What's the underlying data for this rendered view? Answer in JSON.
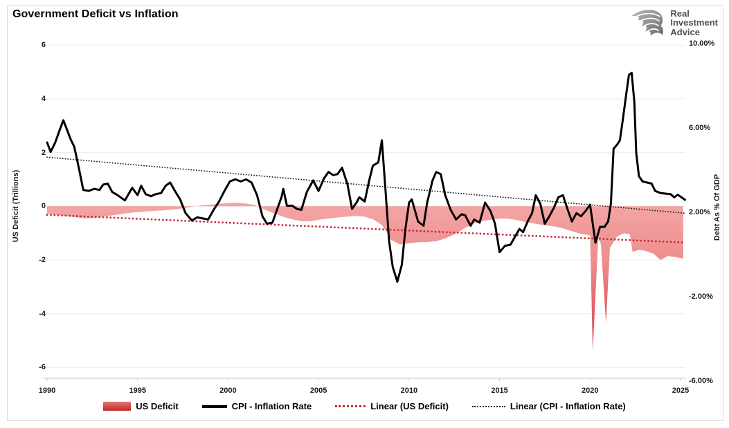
{
  "title": "Government Deficit vs Inflation",
  "logo": {
    "lines": [
      "Real",
      "Investment",
      "Advice"
    ]
  },
  "colors": {
    "area_top": "#f3a6a6",
    "area_mid": "#ee8d8d",
    "area_bottom": "#cc2b33",
    "cpi_line": "#000000",
    "deficit_trend": "#c9293a",
    "cpi_trend": "#1a1a1a",
    "gridline": "#ececec",
    "axis_line": "#c8c8c8"
  },
  "chart_data": {
    "type": "line",
    "title": "Government Deficit vs Inflation",
    "grid": "horizontal",
    "x_axis": {
      "range": [
        1990,
        2025.4
      ],
      "ticks": [
        "1990",
        "1995",
        "2000",
        "2005",
        "2010",
        "2015",
        "2020",
        "2025"
      ],
      "tick_values": [
        1990,
        1995,
        2000,
        2005,
        2010,
        2015,
        2020,
        2025
      ]
    },
    "left_axis": {
      "label": "US Deficit (Trillions)",
      "range": [
        -6,
        6
      ],
      "ticks": [
        "6",
        "4",
        "2",
        "0",
        "-2",
        "-4",
        "-6"
      ],
      "tick_values": [
        6,
        4,
        2,
        0,
        -2,
        -4,
        -6
      ]
    },
    "right_axis": {
      "label": "Debt As % Of GDP",
      "range": [
        -7.9,
        10.1
      ],
      "ticks": [
        "10.00%",
        "6.00%",
        "2.00%",
        "-2.00%",
        "-6.00%"
      ],
      "tick_values": [
        10,
        6,
        2,
        -2,
        -6
      ]
    },
    "legend": {
      "position": "bottom"
    },
    "series": [
      {
        "name": "US Deficit",
        "type": "area",
        "axis": "left",
        "points": [
          [
            1990.0,
            -0.28
          ],
          [
            1990.5,
            -0.32
          ],
          [
            1991.0,
            -0.36
          ],
          [
            1991.5,
            -0.4
          ],
          [
            1992.0,
            -0.45
          ],
          [
            1992.5,
            -0.44
          ],
          [
            1993.0,
            -0.4
          ],
          [
            1993.5,
            -0.35
          ],
          [
            1994.0,
            -0.3
          ],
          [
            1994.5,
            -0.25
          ],
          [
            1995.0,
            -0.22
          ],
          [
            1995.5,
            -0.19
          ],
          [
            1996.0,
            -0.17
          ],
          [
            1996.5,
            -0.15
          ],
          [
            1997.0,
            -0.12
          ],
          [
            1997.5,
            -0.08
          ],
          [
            1998.0,
            -0.02
          ],
          [
            1998.5,
            0.03
          ],
          [
            1999.0,
            0.06
          ],
          [
            1999.5,
            0.09
          ],
          [
            2000.0,
            0.12
          ],
          [
            2000.5,
            0.13
          ],
          [
            2001.0,
            0.1
          ],
          [
            2001.5,
            0.04
          ],
          [
            2002.0,
            -0.12
          ],
          [
            2002.5,
            -0.25
          ],
          [
            2003.0,
            -0.38
          ],
          [
            2003.5,
            -0.48
          ],
          [
            2004.0,
            -0.55
          ],
          [
            2004.5,
            -0.56
          ],
          [
            2005.0,
            -0.5
          ],
          [
            2005.5,
            -0.46
          ],
          [
            2006.0,
            -0.42
          ],
          [
            2006.5,
            -0.39
          ],
          [
            2007.0,
            -0.36
          ],
          [
            2007.5,
            -0.38
          ],
          [
            2008.0,
            -0.48
          ],
          [
            2008.5,
            -0.7
          ],
          [
            2008.75,
            -0.95
          ],
          [
            2009.0,
            -1.25
          ],
          [
            2009.5,
            -1.42
          ],
          [
            2010.0,
            -1.38
          ],
          [
            2010.5,
            -1.34
          ],
          [
            2011.0,
            -1.33
          ],
          [
            2011.5,
            -1.3
          ],
          [
            2012.0,
            -1.2
          ],
          [
            2012.5,
            -1.05
          ],
          [
            2013.0,
            -0.85
          ],
          [
            2013.5,
            -0.66
          ],
          [
            2014.0,
            -0.56
          ],
          [
            2014.5,
            -0.5
          ],
          [
            2015.0,
            -0.46
          ],
          [
            2015.5,
            -0.46
          ],
          [
            2016.0,
            -0.52
          ],
          [
            2016.5,
            -0.6
          ],
          [
            2017.0,
            -0.65
          ],
          [
            2017.5,
            -0.71
          ],
          [
            2018.0,
            -0.75
          ],
          [
            2018.5,
            -0.82
          ],
          [
            2019.0,
            -0.93
          ],
          [
            2019.5,
            -1.03
          ],
          [
            2020.0,
            -1.08
          ],
          [
            2020.15,
            -5.4
          ],
          [
            2020.45,
            -1.2
          ],
          [
            2020.6,
            -1.4
          ],
          [
            2020.88,
            -4.35
          ],
          [
            2021.1,
            -1.55
          ],
          [
            2021.5,
            -1.12
          ],
          [
            2021.9,
            -1.0
          ],
          [
            2022.2,
            -1.05
          ],
          [
            2022.35,
            -1.7
          ],
          [
            2022.7,
            -1.62
          ],
          [
            2023.0,
            -1.65
          ],
          [
            2023.5,
            -1.76
          ],
          [
            2023.9,
            -2.0
          ],
          [
            2024.3,
            -1.85
          ],
          [
            2024.8,
            -1.9
          ],
          [
            2025.15,
            -1.95
          ]
        ]
      },
      {
        "name": "CPI - Inflation Rate",
        "type": "line",
        "axis": "right",
        "points": [
          [
            1990.0,
            5.3
          ],
          [
            1990.2,
            4.85
          ],
          [
            1990.45,
            5.3
          ],
          [
            1990.7,
            5.9
          ],
          [
            1990.9,
            6.35
          ],
          [
            1991.1,
            5.9
          ],
          [
            1991.3,
            5.45
          ],
          [
            1991.5,
            5.1
          ],
          [
            1991.75,
            4.1
          ],
          [
            1992.0,
            3.05
          ],
          [
            1992.3,
            3.0
          ],
          [
            1992.6,
            3.1
          ],
          [
            1992.9,
            3.05
          ],
          [
            1993.1,
            3.3
          ],
          [
            1993.35,
            3.35
          ],
          [
            1993.6,
            2.95
          ],
          [
            1993.9,
            2.8
          ],
          [
            1994.3,
            2.55
          ],
          [
            1994.7,
            3.15
          ],
          [
            1995.0,
            2.8
          ],
          [
            1995.2,
            3.25
          ],
          [
            1995.45,
            2.85
          ],
          [
            1995.75,
            2.75
          ],
          [
            1996.0,
            2.85
          ],
          [
            1996.3,
            2.9
          ],
          [
            1996.55,
            3.25
          ],
          [
            1996.8,
            3.4
          ],
          [
            1997.1,
            2.95
          ],
          [
            1997.35,
            2.6
          ],
          [
            1997.65,
            1.95
          ],
          [
            1998.0,
            1.6
          ],
          [
            1998.3,
            1.75
          ],
          [
            1998.6,
            1.7
          ],
          [
            1998.9,
            1.65
          ],
          [
            1999.2,
            2.1
          ],
          [
            1999.5,
            2.5
          ],
          [
            1999.8,
            3.0
          ],
          [
            2000.1,
            3.45
          ],
          [
            2000.4,
            3.55
          ],
          [
            2000.7,
            3.45
          ],
          [
            2001.0,
            3.55
          ],
          [
            2001.3,
            3.4
          ],
          [
            2001.6,
            2.8
          ],
          [
            2001.9,
            1.8
          ],
          [
            2002.15,
            1.45
          ],
          [
            2002.45,
            1.5
          ],
          [
            2002.7,
            2.1
          ],
          [
            2002.95,
            2.7
          ],
          [
            2003.05,
            3.1
          ],
          [
            2003.25,
            2.3
          ],
          [
            2003.55,
            2.3
          ],
          [
            2003.8,
            2.15
          ],
          [
            2004.05,
            2.1
          ],
          [
            2004.35,
            2.95
          ],
          [
            2004.7,
            3.5
          ],
          [
            2005.0,
            3.0
          ],
          [
            2005.3,
            3.6
          ],
          [
            2005.55,
            3.9
          ],
          [
            2005.8,
            3.75
          ],
          [
            2006.05,
            3.8
          ],
          [
            2006.3,
            4.1
          ],
          [
            2006.6,
            3.3
          ],
          [
            2006.85,
            2.15
          ],
          [
            2007.1,
            2.45
          ],
          [
            2007.25,
            2.7
          ],
          [
            2007.55,
            2.5
          ],
          [
            2007.8,
            3.5
          ],
          [
            2008.0,
            4.2
          ],
          [
            2008.3,
            4.35
          ],
          [
            2008.5,
            5.4
          ],
          [
            2008.7,
            3.0
          ],
          [
            2008.9,
            0.6
          ],
          [
            2009.1,
            -0.6
          ],
          [
            2009.35,
            -1.3
          ],
          [
            2009.6,
            -0.5
          ],
          [
            2009.8,
            1.2
          ],
          [
            2010.0,
            2.45
          ],
          [
            2010.15,
            2.6
          ],
          [
            2010.5,
            1.55
          ],
          [
            2010.8,
            1.35
          ],
          [
            2011.0,
            2.45
          ],
          [
            2011.3,
            3.5
          ],
          [
            2011.5,
            3.9
          ],
          [
            2011.75,
            3.8
          ],
          [
            2012.0,
            2.8
          ],
          [
            2012.3,
            2.1
          ],
          [
            2012.6,
            1.65
          ],
          [
            2012.9,
            1.9
          ],
          [
            2013.1,
            1.85
          ],
          [
            2013.4,
            1.35
          ],
          [
            2013.6,
            1.65
          ],
          [
            2013.9,
            1.5
          ],
          [
            2014.2,
            2.45
          ],
          [
            2014.5,
            2.05
          ],
          [
            2014.75,
            1.45
          ],
          [
            2015.0,
            0.1
          ],
          [
            2015.3,
            0.4
          ],
          [
            2015.6,
            0.45
          ],
          [
            2015.9,
            0.9
          ],
          [
            2016.1,
            1.2
          ],
          [
            2016.3,
            1.05
          ],
          [
            2016.55,
            1.55
          ],
          [
            2016.8,
            1.95
          ],
          [
            2017.0,
            2.8
          ],
          [
            2017.25,
            2.4
          ],
          [
            2017.5,
            1.45
          ],
          [
            2017.75,
            1.8
          ],
          [
            2018.0,
            2.2
          ],
          [
            2018.25,
            2.7
          ],
          [
            2018.5,
            2.8
          ],
          [
            2018.75,
            2.15
          ],
          [
            2019.0,
            1.55
          ],
          [
            2019.25,
            1.95
          ],
          [
            2019.5,
            1.8
          ],
          [
            2019.75,
            2.05
          ],
          [
            2020.0,
            2.35
          ],
          [
            2020.3,
            0.55
          ],
          [
            2020.55,
            1.3
          ],
          [
            2020.8,
            1.3
          ],
          [
            2021.0,
            1.55
          ],
          [
            2021.15,
            2.4
          ],
          [
            2021.3,
            5.0
          ],
          [
            2021.5,
            5.2
          ],
          [
            2021.65,
            5.4
          ],
          [
            2021.8,
            6.3
          ],
          [
            2022.0,
            7.6
          ],
          [
            2022.15,
            8.5
          ],
          [
            2022.3,
            8.6
          ],
          [
            2022.45,
            7.2
          ],
          [
            2022.55,
            4.8
          ],
          [
            2022.7,
            3.7
          ],
          [
            2022.9,
            3.45
          ],
          [
            2023.15,
            3.4
          ],
          [
            2023.4,
            3.35
          ],
          [
            2023.6,
            3.0
          ],
          [
            2023.9,
            2.9
          ],
          [
            2024.2,
            2.87
          ],
          [
            2024.45,
            2.85
          ],
          [
            2024.65,
            2.7
          ],
          [
            2024.85,
            2.82
          ],
          [
            2025.05,
            2.7
          ],
          [
            2025.25,
            2.58
          ]
        ]
      },
      {
        "name": "Linear (US Deficit)",
        "type": "dotted",
        "axis": "left",
        "points": [
          [
            1990.0,
            -0.32
          ],
          [
            2025.2,
            -1.35
          ]
        ]
      },
      {
        "name": "Linear (CPI - Inflation Rate)",
        "type": "dotted",
        "axis": "right",
        "points": [
          [
            1990.0,
            4.6
          ],
          [
            2025.2,
            1.95
          ]
        ]
      }
    ]
  }
}
